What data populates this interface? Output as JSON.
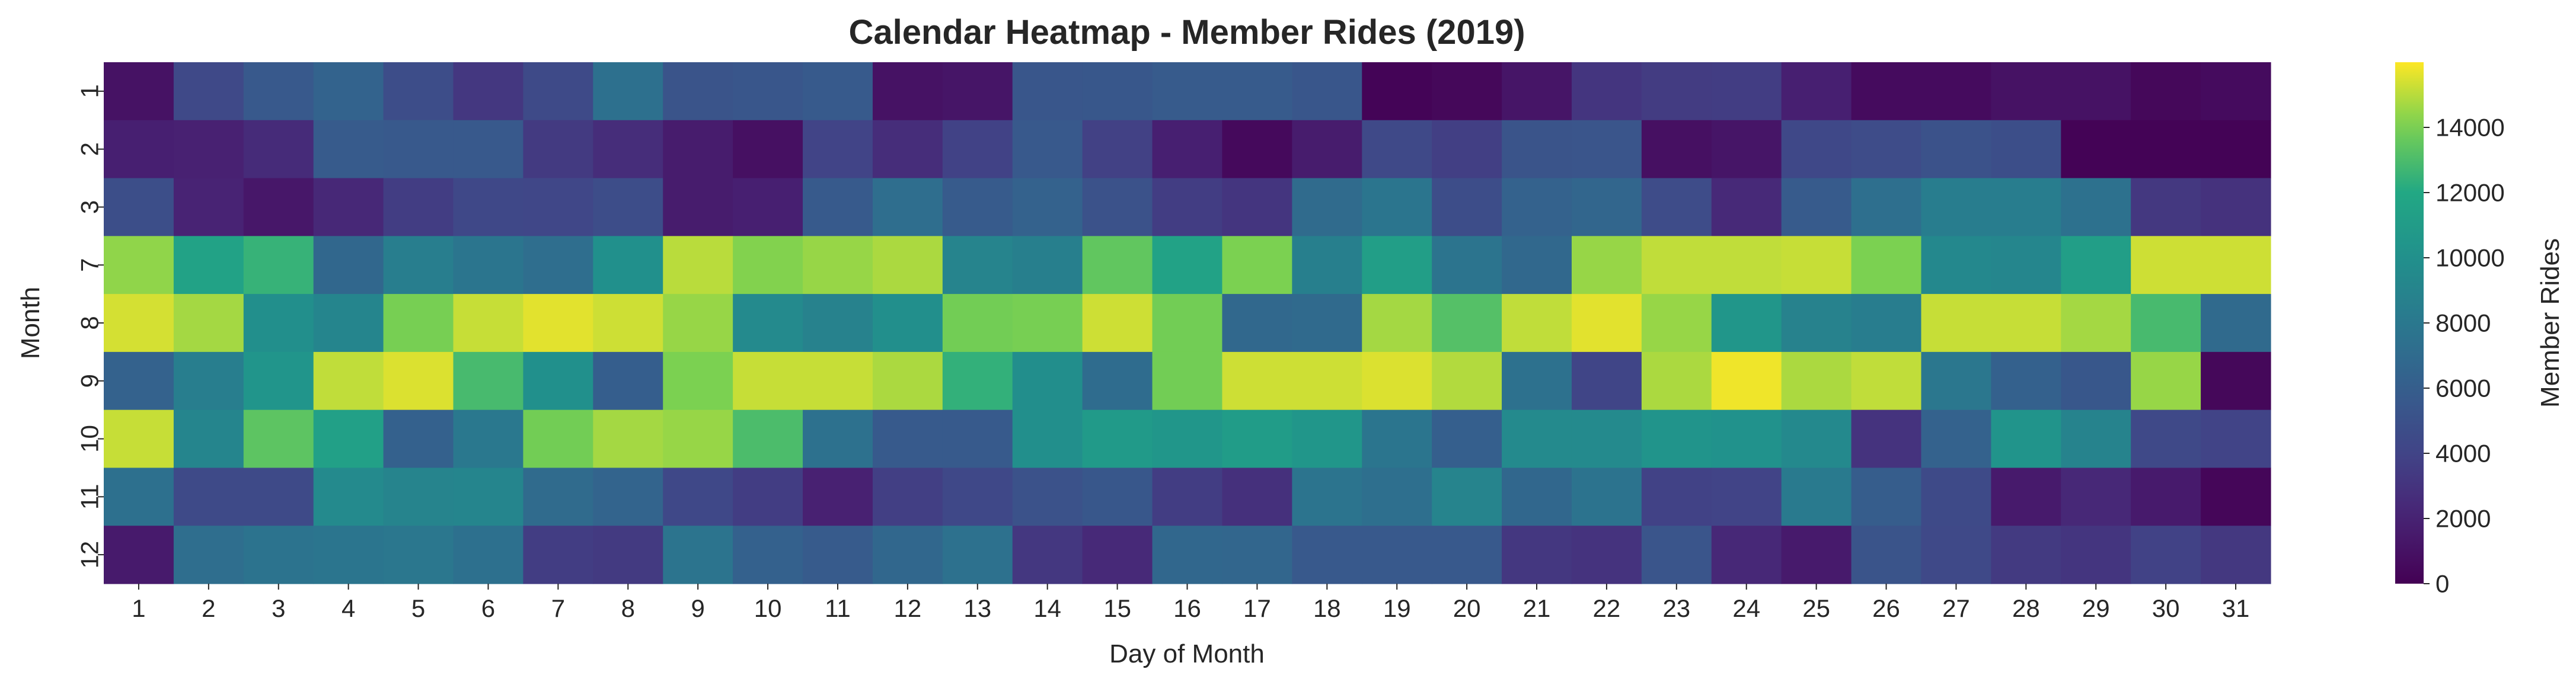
{
  "chart_data": {
    "type": "heatmap",
    "title": "Calendar Heatmap - Member Rides (2019)",
    "xlabel": "Day of Month",
    "ylabel": "Month",
    "colorbar_label": "Member Rides",
    "x_categories": [
      "1",
      "2",
      "3",
      "4",
      "5",
      "6",
      "7",
      "8",
      "9",
      "10",
      "11",
      "12",
      "13",
      "14",
      "15",
      "16",
      "17",
      "18",
      "19",
      "20",
      "21",
      "22",
      "23",
      "24",
      "25",
      "26",
      "27",
      "28",
      "29",
      "30",
      "31"
    ],
    "y_categories": [
      "1",
      "2",
      "3",
      "7",
      "8",
      "9",
      "10",
      "11",
      "12"
    ],
    "colorbar_ticks": [
      "0",
      "2000",
      "4000",
      "6000",
      "8000",
      "10000",
      "12000",
      "14000"
    ],
    "vmin": 0,
    "vmax": 16000,
    "colormap": "viridis",
    "values": [
      [
        1000,
        4400,
        5600,
        6400,
        4700,
        3200,
        4500,
        7400,
        5200,
        5400,
        5700,
        1000,
        1200,
        5400,
        5500,
        5800,
        5800,
        5400,
        200,
        400,
        1200,
        3100,
        3500,
        3600,
        1800,
        600,
        600,
        1000,
        1000,
        400,
        600
      ],
      [
        1800,
        1900,
        2500,
        5800,
        5600,
        5600,
        3400,
        2600,
        1600,
        900,
        4000,
        2600,
        3900,
        5600,
        3800,
        1800,
        500,
        1600,
        4400,
        3700,
        5200,
        5300,
        900,
        1200,
        4300,
        4600,
        5100,
        4800,
        100,
        100,
        100
      ],
      [
        4800,
        2000,
        1300,
        2300,
        3600,
        4300,
        4200,
        4700,
        1600,
        1800,
        5700,
        7200,
        5800,
        6300,
        5100,
        3600,
        3100,
        7000,
        7800,
        4700,
        6300,
        6600,
        4600,
        2400,
        5800,
        7300,
        8400,
        8400,
        7500,
        3300,
        2900
      ],
      [
        14400,
        11500,
        12500,
        6700,
        8500,
        7800,
        7200,
        10000,
        15000,
        14200,
        14500,
        14800,
        9000,
        8600,
        13500,
        11500,
        14100,
        8600,
        11200,
        7700,
        6800,
        14500,
        15100,
        15100,
        15200,
        14100,
        9300,
        9200,
        11200,
        15300,
        15300
      ],
      [
        15400,
        14700,
        9900,
        9100,
        14000,
        15200,
        15600,
        15300,
        14500,
        9500,
        8800,
        9900,
        13900,
        14000,
        15300,
        13900,
        6800,
        6900,
        14700,
        13200,
        15100,
        15600,
        14500,
        10500,
        8800,
        8400,
        15200,
        15200,
        14700,
        12900,
        6900
      ],
      [
        6300,
        8500,
        10400,
        15100,
        15500,
        12900,
        10000,
        6000,
        14100,
        15200,
        15200,
        14800,
        12400,
        9800,
        7100,
        13900,
        15300,
        15300,
        15500,
        14900,
        7500,
        4100,
        14800,
        15800,
        14800,
        15100,
        7900,
        6200,
        5500,
        14500,
        400
      ],
      [
        15200,
        9100,
        13400,
        11300,
        6200,
        8000,
        13900,
        14700,
        14500,
        13000,
        7500,
        5700,
        5700,
        9900,
        10800,
        10500,
        11000,
        10500,
        7800,
        6100,
        9500,
        9500,
        10300,
        10200,
        9400,
        3000,
        6300,
        10300,
        8900,
        4400,
        4000
      ],
      [
        7400,
        4500,
        4500,
        9500,
        9000,
        9100,
        7000,
        6500,
        4300,
        3600,
        1900,
        3700,
        4300,
        5100,
        5500,
        3600,
        2800,
        7700,
        7300,
        9000,
        6700,
        7600,
        3900,
        4000,
        8200,
        5900,
        4500,
        1500,
        2300,
        1500,
        300
      ],
      [
        1500,
        7200,
        7600,
        7800,
        7900,
        7400,
        3600,
        3400,
        7700,
        6200,
        5800,
        6700,
        7500,
        3200,
        2400,
        6700,
        6600,
        5600,
        5600,
        5600,
        3200,
        3000,
        5300,
        2300,
        1500,
        5200,
        4400,
        3400,
        3100,
        3900,
        3300
      ]
    ]
  }
}
